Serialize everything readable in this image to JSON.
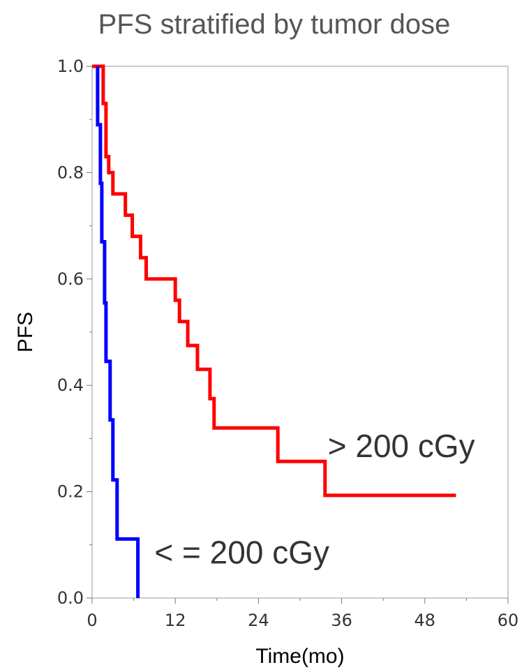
{
  "chart_data": {
    "type": "line",
    "title": "PFS stratified by tumor dose",
    "xlabel": "Time(mo)",
    "ylabel": "PFS",
    "xlim": [
      0,
      60
    ],
    "ylim": [
      0,
      1.0
    ],
    "xticks": [
      "0",
      "12",
      "24",
      "36",
      "48",
      "60"
    ],
    "yticks": [
      "0.0",
      "0.2",
      "0.4",
      "0.6",
      "0.8",
      "1.0"
    ],
    "step": true,
    "grid": false,
    "series": [
      {
        "color": "#ff0000",
        "x": [
          0,
          1.6,
          1.6,
          2.0,
          2.0,
          2.4,
          2.4,
          3.0,
          3.0,
          4.8,
          4.8,
          5.8,
          5.8,
          7.0,
          7.0,
          7.8,
          7.8,
          12.0,
          12.0,
          12.6,
          12.6,
          13.8,
          13.8,
          15.2,
          15.2,
          17.0,
          17.0,
          17.6,
          17.6,
          26.8,
          26.8,
          33.6,
          33.6,
          52.5
        ],
        "y": [
          1.0,
          1.0,
          0.93,
          0.93,
          0.83,
          0.83,
          0.8,
          0.8,
          0.76,
          0.76,
          0.72,
          0.72,
          0.68,
          0.68,
          0.64,
          0.64,
          0.6,
          0.6,
          0.56,
          0.56,
          0.52,
          0.52,
          0.475,
          0.475,
          0.43,
          0.43,
          0.375,
          0.375,
          0.32,
          0.32,
          0.257,
          0.257,
          0.193,
          0.193
        ]
      },
      {
        "color": "#0000ff",
        "x": [
          0.8,
          0.8,
          1.2,
          1.2,
          1.4,
          1.4,
          1.8,
          1.8,
          2.0,
          2.0,
          2.6,
          2.6,
          3.0,
          3.0,
          3.6,
          3.6,
          6.6,
          6.6
        ],
        "y": [
          1.0,
          0.89,
          0.89,
          0.78,
          0.78,
          0.67,
          0.67,
          0.555,
          0.555,
          0.445,
          0.445,
          0.335,
          0.335,
          0.222,
          0.222,
          0.111,
          0.111,
          0.0
        ]
      }
    ],
    "annotations": [
      {
        "text": "> 200 cGy",
        "x": 34,
        "y": 0.265
      },
      {
        "text": "< = 200 cGy",
        "x": 9,
        "y": 0.065
      }
    ]
  }
}
